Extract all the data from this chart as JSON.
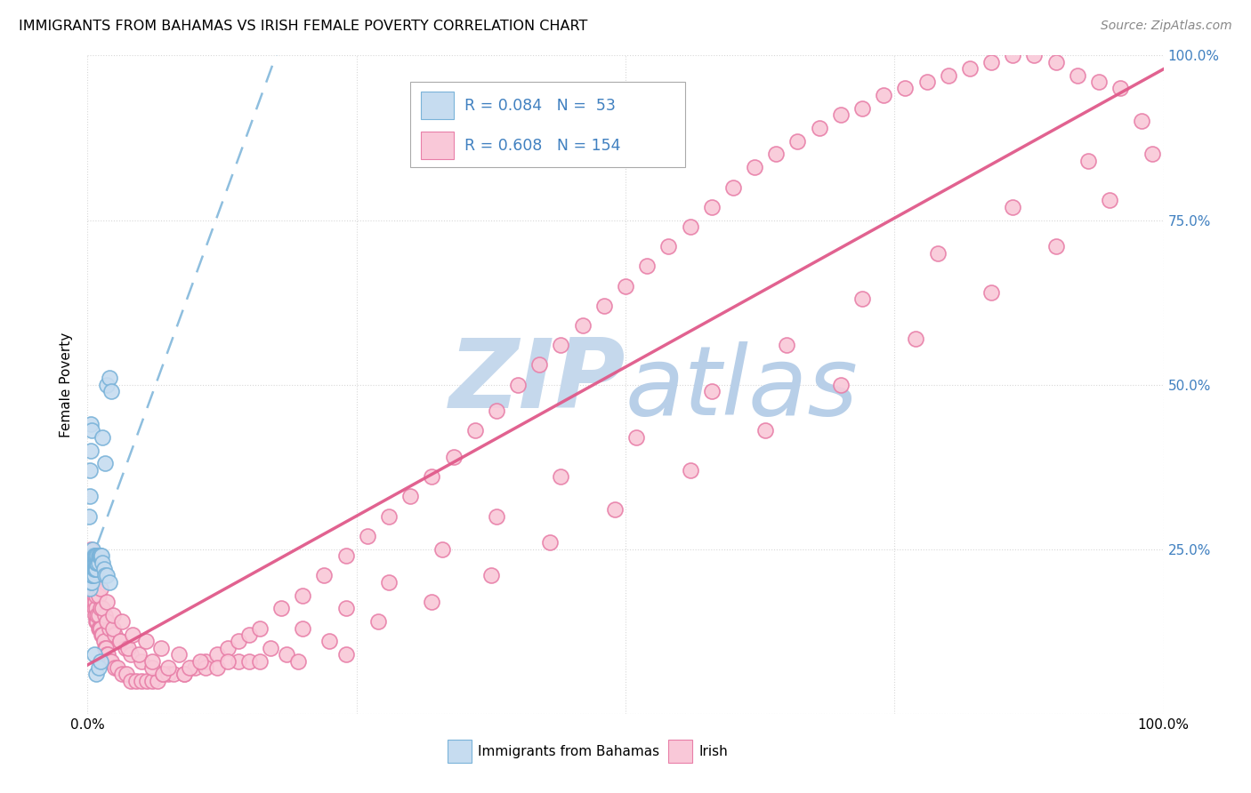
{
  "title": "IMMIGRANTS FROM BAHAMAS VS IRISH FEMALE POVERTY CORRELATION CHART",
  "source": "Source: ZipAtlas.com",
  "ylabel": "Female Poverty",
  "color_blue_face": "#c6dcf0",
  "color_blue_edge": "#7ab3d9",
  "color_pink_face": "#f9c8d8",
  "color_pink_edge": "#e87fa8",
  "trend_blue_color": "#7ab3d9",
  "trend_pink_color": "#e05a8a",
  "grid_color": "#d8d8d8",
  "tick_color": "#4080c0",
  "watermark_zip_color": "#c5d8ec",
  "watermark_atlas_color": "#b8cfe8",
  "blue_x": [
    0.002,
    0.003,
    0.003,
    0.003,
    0.003,
    0.003,
    0.004,
    0.004,
    0.004,
    0.004,
    0.004,
    0.005,
    0.005,
    0.005,
    0.005,
    0.005,
    0.006,
    0.006,
    0.006,
    0.006,
    0.007,
    0.007,
    0.007,
    0.008,
    0.008,
    0.008,
    0.009,
    0.009,
    0.01,
    0.01,
    0.011,
    0.012,
    0.013,
    0.014,
    0.015,
    0.016,
    0.018,
    0.02,
    0.001,
    0.002,
    0.002,
    0.003,
    0.003,
    0.004,
    0.018,
    0.02,
    0.022,
    0.014,
    0.016,
    0.008,
    0.01,
    0.006,
    0.012
  ],
  "blue_y": [
    0.19,
    0.2,
    0.21,
    0.22,
    0.23,
    0.24,
    0.2,
    0.21,
    0.22,
    0.23,
    0.24,
    0.21,
    0.22,
    0.23,
    0.24,
    0.25,
    0.21,
    0.22,
    0.23,
    0.24,
    0.22,
    0.23,
    0.24,
    0.22,
    0.23,
    0.24,
    0.23,
    0.24,
    0.23,
    0.24,
    0.24,
    0.24,
    0.24,
    0.23,
    0.22,
    0.21,
    0.21,
    0.2,
    0.3,
    0.33,
    0.37,
    0.4,
    0.44,
    0.43,
    0.5,
    0.51,
    0.49,
    0.42,
    0.38,
    0.06,
    0.07,
    0.09,
    0.08
  ],
  "pink_x": [
    0.001,
    0.002,
    0.002,
    0.003,
    0.003,
    0.004,
    0.004,
    0.005,
    0.005,
    0.006,
    0.006,
    0.007,
    0.007,
    0.008,
    0.008,
    0.009,
    0.009,
    0.01,
    0.01,
    0.011,
    0.012,
    0.013,
    0.014,
    0.015,
    0.016,
    0.017,
    0.018,
    0.019,
    0.02,
    0.022,
    0.025,
    0.028,
    0.032,
    0.036,
    0.04,
    0.045,
    0.05,
    0.055,
    0.06,
    0.065,
    0.07,
    0.075,
    0.08,
    0.09,
    0.1,
    0.11,
    0.12,
    0.13,
    0.14,
    0.15,
    0.16,
    0.18,
    0.2,
    0.22,
    0.24,
    0.26,
    0.28,
    0.3,
    0.32,
    0.34,
    0.36,
    0.38,
    0.4,
    0.42,
    0.44,
    0.46,
    0.48,
    0.5,
    0.52,
    0.54,
    0.56,
    0.58,
    0.6,
    0.62,
    0.64,
    0.66,
    0.68,
    0.7,
    0.72,
    0.74,
    0.76,
    0.78,
    0.8,
    0.82,
    0.84,
    0.86,
    0.88,
    0.9,
    0.92,
    0.94,
    0.96,
    0.003,
    0.005,
    0.008,
    0.012,
    0.016,
    0.02,
    0.025,
    0.03,
    0.035,
    0.04,
    0.05,
    0.06,
    0.07,
    0.09,
    0.11,
    0.14,
    0.17,
    0.2,
    0.24,
    0.28,
    0.33,
    0.38,
    0.44,
    0.51,
    0.58,
    0.65,
    0.72,
    0.79,
    0.86,
    0.93,
    0.98,
    0.002,
    0.004,
    0.006,
    0.01,
    0.014,
    0.018,
    0.024,
    0.03,
    0.038,
    0.048,
    0.06,
    0.075,
    0.095,
    0.12,
    0.15,
    0.185,
    0.225,
    0.27,
    0.32,
    0.375,
    0.43,
    0.49,
    0.56,
    0.63,
    0.7,
    0.77,
    0.84,
    0.9,
    0.95,
    0.99,
    0.003,
    0.005,
    0.008,
    0.012,
    0.018,
    0.024,
    0.032,
    0.042,
    0.054,
    0.068,
    0.085,
    0.105,
    0.13,
    0.16,
    0.196,
    0.24
  ],
  "pink_y": [
    0.22,
    0.2,
    0.22,
    0.2,
    0.22,
    0.18,
    0.2,
    0.17,
    0.19,
    0.16,
    0.18,
    0.15,
    0.17,
    0.14,
    0.16,
    0.14,
    0.15,
    0.13,
    0.15,
    0.13,
    0.13,
    0.12,
    0.12,
    0.11,
    0.1,
    0.1,
    0.09,
    0.09,
    0.08,
    0.08,
    0.07,
    0.07,
    0.06,
    0.06,
    0.05,
    0.05,
    0.05,
    0.05,
    0.05,
    0.05,
    0.06,
    0.06,
    0.06,
    0.06,
    0.07,
    0.08,
    0.09,
    0.1,
    0.11,
    0.12,
    0.13,
    0.16,
    0.18,
    0.21,
    0.24,
    0.27,
    0.3,
    0.33,
    0.36,
    0.39,
    0.43,
    0.46,
    0.5,
    0.53,
    0.56,
    0.59,
    0.62,
    0.65,
    0.68,
    0.71,
    0.74,
    0.77,
    0.8,
    0.83,
    0.85,
    0.87,
    0.89,
    0.91,
    0.92,
    0.94,
    0.95,
    0.96,
    0.97,
    0.98,
    0.99,
    1.0,
    1.0,
    0.99,
    0.97,
    0.96,
    0.95,
    0.21,
    0.19,
    0.18,
    0.16,
    0.15,
    0.13,
    0.12,
    0.11,
    0.1,
    0.09,
    0.08,
    0.07,
    0.06,
    0.06,
    0.07,
    0.08,
    0.1,
    0.13,
    0.16,
    0.2,
    0.25,
    0.3,
    0.36,
    0.42,
    0.49,
    0.56,
    0.63,
    0.7,
    0.77,
    0.84,
    0.9,
    0.24,
    0.22,
    0.2,
    0.18,
    0.16,
    0.14,
    0.13,
    0.11,
    0.1,
    0.09,
    0.08,
    0.07,
    0.07,
    0.07,
    0.08,
    0.09,
    0.11,
    0.14,
    0.17,
    0.21,
    0.26,
    0.31,
    0.37,
    0.43,
    0.5,
    0.57,
    0.64,
    0.71,
    0.78,
    0.85,
    0.25,
    0.23,
    0.21,
    0.19,
    0.17,
    0.15,
    0.14,
    0.12,
    0.11,
    0.1,
    0.09,
    0.08,
    0.08,
    0.08,
    0.08,
    0.09
  ]
}
